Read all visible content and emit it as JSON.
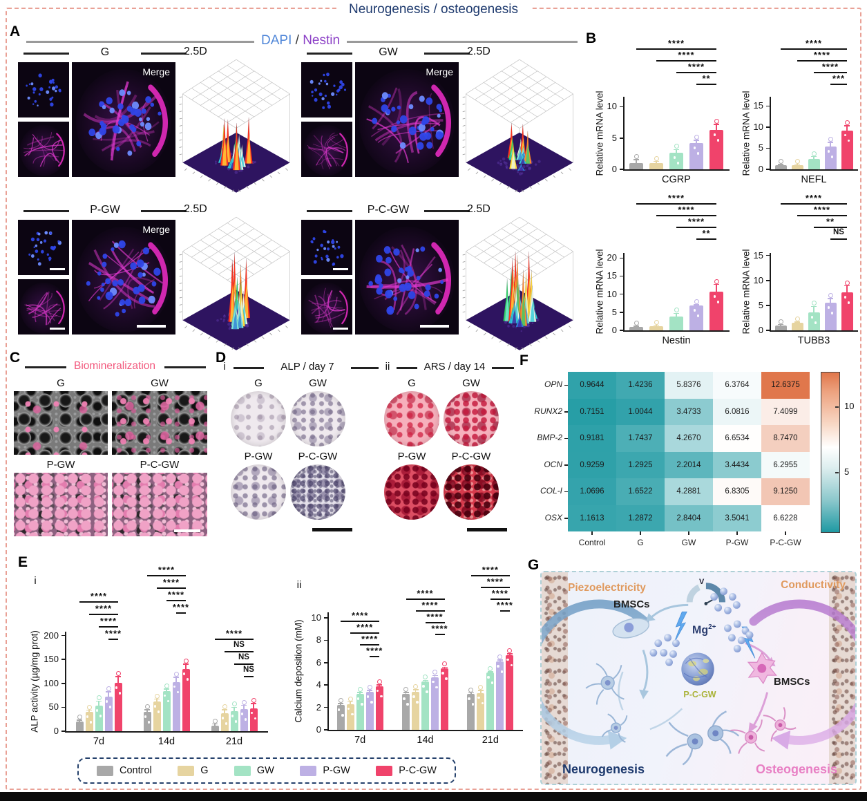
{
  "figure": {
    "title": "Neurogenesis / osteogenesis",
    "panel_labels": {
      "a": "A",
      "b": "B",
      "c": "C",
      "d": "D",
      "e": "E",
      "f": "F",
      "g": "G"
    }
  },
  "panel_a": {
    "header": {
      "dapi": "DAPI",
      "sep": " / ",
      "nestin": "Nestin"
    },
    "dapi_color": "#4f86d8",
    "nestin_color": "#8b3fc6",
    "groups": [
      {
        "name": "G",
        "plot_label": "2.5D",
        "merge_label": "Merge"
      },
      {
        "name": "GW",
        "plot_label": "2.5D",
        "merge_label": "Merge"
      },
      {
        "name": "P-GW",
        "plot_label": "2.5D",
        "merge_label": "Merge"
      },
      {
        "name": "P-C-GW",
        "plot_label": "2.5D",
        "merge_label": ""
      }
    ]
  },
  "panel_c": {
    "header": "Biomineralization",
    "header_color": "#f2577c",
    "labels": [
      "G",
      "GW",
      "P-GW",
      "P-C-GW"
    ]
  },
  "panel_d": {
    "i": {
      "marker": "i",
      "header": "ALP / day 7",
      "labels": [
        "G",
        "GW",
        "P-GW",
        "P-C-GW"
      ]
    },
    "ii": {
      "marker": "ii",
      "header": "ARS / day 14",
      "labels": [
        "G",
        "GW",
        "P-GW",
        "P-C-GW"
      ]
    }
  },
  "panel_e": {
    "marker_i": "i",
    "marker_ii": "ii"
  },
  "legend": {
    "items": [
      {
        "label": "Control",
        "color": "#a8a8a8"
      },
      {
        "label": "G",
        "color": "#e6d4a0"
      },
      {
        "label": "GW",
        "color": "#a3e3c4"
      },
      {
        "label": "P-GW",
        "color": "#bdb0e4"
      },
      {
        "label": "P-C-GW",
        "color": "#f0436b"
      }
    ]
  },
  "chart_data": [
    {
      "id": "cgrp",
      "type": "bar",
      "categories": [
        "CGRP"
      ],
      "ylabel": "Relative mRNA level",
      "yticks": [
        0,
        5,
        10
      ],
      "ymax": 11.6,
      "groups": [
        "Control",
        "G",
        "GW",
        "P-GW",
        "P-C-GW"
      ],
      "values": [
        1.0,
        1.0,
        2.6,
        4.2,
        6.3
      ],
      "errors": [
        0.55,
        0.25,
        0.55,
        0.45,
        0.9
      ],
      "sig": [
        "****",
        "****",
        "****",
        "**"
      ]
    },
    {
      "id": "nefl",
      "type": "bar",
      "categories": [
        "NEFL"
      ],
      "ylabel": "Relative mRNA level",
      "yticks": [
        0,
        5,
        10,
        15
      ],
      "ymax": 17.2,
      "groups": [
        "Control",
        "G",
        "GW",
        "P-GW",
        "P-C-GW"
      ],
      "values": [
        1.0,
        1.0,
        2.5,
        5.4,
        9.2
      ],
      "errors": [
        0.15,
        0.2,
        0.5,
        1.0,
        1.1
      ],
      "sig": [
        "****",
        "****",
        "****",
        "***"
      ]
    },
    {
      "id": "nestin",
      "type": "bar",
      "categories": [
        "Nestin"
      ],
      "ylabel": "Relative mRNA level",
      "yticks": [
        0,
        5,
        10,
        15,
        20
      ],
      "ymax": 21.4,
      "groups": [
        "Control",
        "G",
        "GW",
        "P-GW",
        "P-C-GW"
      ],
      "values": [
        1.0,
        1.2,
        3.8,
        6.8,
        10.7
      ],
      "errors": [
        0.2,
        0.2,
        0.9,
        0.25,
        2.0
      ],
      "sig": [
        "****",
        "****",
        "****",
        "**"
      ]
    },
    {
      "id": "tubb3",
      "type": "bar",
      "categories": [
        "TUBB3"
      ],
      "ylabel": "Relative mRNA level",
      "yticks": [
        0,
        5,
        10,
        15
      ],
      "ymax": 15.5,
      "groups": [
        "Control",
        "G",
        "GW",
        "P-GW",
        "P-C-GW"
      ],
      "values": [
        1.0,
        1.5,
        3.6,
        5.5,
        7.6
      ],
      "errors": [
        0.15,
        0.2,
        1.2,
        0.9,
        1.3
      ],
      "sig": [
        "****",
        "****",
        "**",
        "NS"
      ]
    },
    {
      "id": "alp_activity",
      "type": "grouped-bar",
      "ylabel": "ALP activity (µg/mg prot)",
      "yticks": [
        0,
        50,
        100,
        150,
        200
      ],
      "ymax": 208,
      "categories": [
        "7d",
        "14d",
        "21d"
      ],
      "series": [
        {
          "name": "Control",
          "values": [
            20,
            40,
            12
          ]
        },
        {
          "name": "G",
          "values": [
            40,
            62,
            37
          ]
        },
        {
          "name": "GW",
          "values": [
            53,
            84,
            42
          ]
        },
        {
          "name": "P-GW",
          "values": [
            72,
            103,
            46
          ]
        },
        {
          "name": "P-C-GW",
          "values": [
            101,
            130,
            48
          ]
        }
      ],
      "errors": [
        [
          3,
          5,
          3
        ],
        [
          4,
          5,
          8
        ],
        [
          10,
          4,
          8
        ],
        [
          10,
          10,
          8
        ],
        [
          13,
          10,
          10
        ]
      ],
      "sig": {
        "7d": [
          "****",
          "****",
          "****",
          "****"
        ],
        "14d": [
          "****",
          "****",
          "****",
          "****"
        ],
        "21d": [
          "****",
          "NS",
          "NS",
          "NS"
        ]
      }
    },
    {
      "id": "calcium",
      "type": "grouped-bar",
      "ylabel": "Calcium deposition (mM)",
      "yticks": [
        0,
        2,
        4,
        6,
        8,
        10
      ],
      "ymax": 10.5,
      "categories": [
        "7d",
        "14d",
        "21d"
      ],
      "series": [
        {
          "name": "Control",
          "values": [
            2.2,
            3.2,
            3.2
          ]
        },
        {
          "name": "G",
          "values": [
            2.3,
            3.4,
            3.3
          ]
        },
        {
          "name": "GW",
          "values": [
            3.2,
            4.3,
            5.1
          ]
        },
        {
          "name": "P-GW",
          "values": [
            3.4,
            4.7,
            6.1
          ]
        },
        {
          "name": "P-C-GW",
          "values": [
            3.9,
            5.5,
            6.7
          ]
        }
      ],
      "errors": [
        [
          0.15,
          0.12,
          0.1
        ],
        [
          0.2,
          0.18,
          0.22
        ],
        [
          0.15,
          0.12,
          0.1
        ],
        [
          0.12,
          0.15,
          0.12
        ],
        [
          0.12,
          0.1,
          0.1
        ]
      ],
      "sig": {
        "7d": [
          "****",
          "****",
          "****",
          "****"
        ],
        "14d": [
          "****",
          "****",
          "****",
          "****"
        ],
        "21d": [
          "****",
          "****",
          "****",
          "****"
        ]
      }
    },
    {
      "id": "osteo_heatmap",
      "type": "heatmap",
      "rows": [
        "OPN",
        "RUNX2",
        "BMP-2",
        "OCN",
        "COL-I",
        "OSX"
      ],
      "cols": [
        "Control",
        "G",
        "GW",
        "P-GW",
        "P-C-GW"
      ],
      "values": [
        [
          "0.9644",
          "1.4236",
          "5.8376",
          "6.3764",
          "12.6375"
        ],
        [
          "0.7151",
          "1.0044",
          "3.4733",
          "6.0816",
          "7.4099"
        ],
        [
          "0.9181",
          "1.7437",
          "4.2670",
          "6.6534",
          "8.7470"
        ],
        [
          "0.9259",
          "1.2925",
          "2.2014",
          "3.4434",
          "6.2955"
        ],
        [
          "1.0696",
          "1.6522",
          "4.2881",
          "6.8305",
          "9.1250"
        ],
        [
          "1.1613",
          "1.2872",
          "2.8404",
          "3.5041",
          "6.6228"
        ]
      ],
      "colorbar_ticks": [
        5,
        10
      ],
      "scale": {
        "min": 0.5,
        "mid": 6.6,
        "max": 12.7,
        "low_color": "#1f9aa3",
        "mid_color": "#ffffff",
        "high_color": "#e0764a"
      }
    }
  ],
  "panel_g": {
    "piezoelectricity": "Piezoelectricity",
    "conductivity": "Conductivity",
    "bmscs": "BMSCs",
    "mg": "Mg",
    "mg_sup": "2+",
    "gauge": "V",
    "sphere_label": "P-C-GW",
    "neurogenesis": "Neurogenesis",
    "osteogenesis": "Osteogenesis",
    "neuro_color": "#1e3a6e",
    "osteo_color": "#e87fc4",
    "accent_orange": "#e09a5e",
    "sphere_label_color": "#a9b236"
  }
}
